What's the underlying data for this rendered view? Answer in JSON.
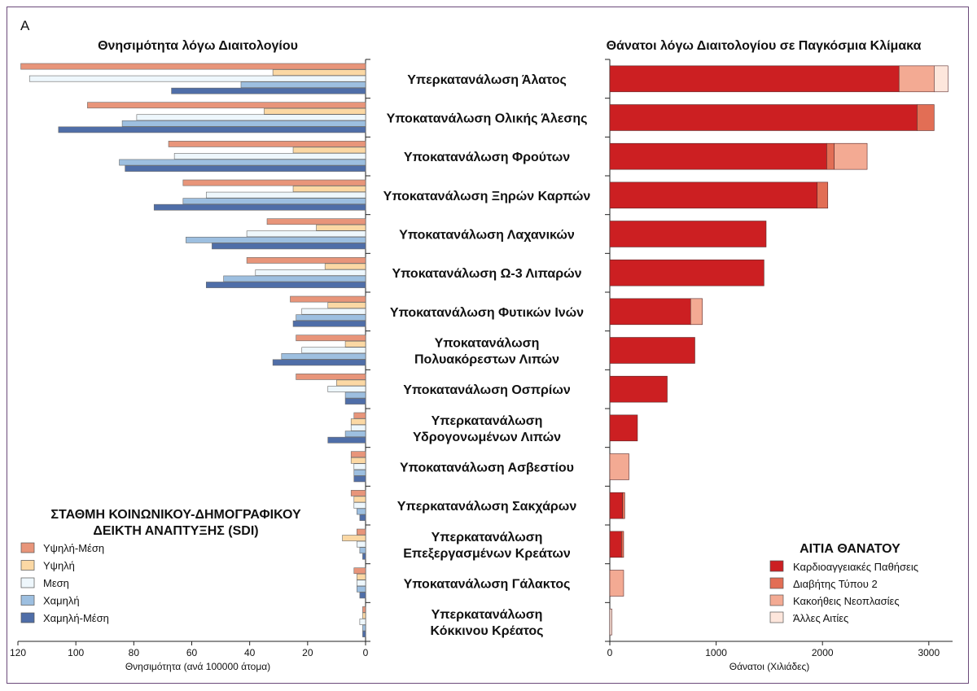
{
  "panel_letter": "A",
  "chart_data": [
    {
      "type": "bar",
      "title": "Θνησιμότητα λόγω Διαιτολογίου",
      "xlabel": "Θνησιμότητα (ανά 100000 άτομα)",
      "xlim": [
        0,
        120
      ],
      "x_reversed": true,
      "ticks": [
        0,
        20,
        40,
        60,
        80,
        100,
        120
      ],
      "categories": [
        "Υπερκατανάλωση Άλατος",
        "Υποκατανάλωση Ολικής Άλεσης",
        "Υποκατανάλωση Φρούτων",
        "Υποκατανάλωση Ξηρών Καρπών",
        "Υποκατανάλωση Λαχανικών",
        "Υποκατανάλωση Ω-3 Λιπαρών",
        "Υποκατανάλωση Φυτικών Ινών",
        "Υποκατανάλωση Πολυακόρεστων Λιπών",
        "Υποκατανάλωση Οσπρίων",
        "Υπερκατανάλωση Υδρογονωμένων Λιπών",
        "Υποκατανάλωση Ασβεστίου",
        "Υπερκατανάλωση Σακχάρων",
        "Υπερκατανάλωση Επεξεργασμένων Κρεάτων",
        "Υποκατανάλωση Γάλακτος",
        "Υπερκατανάλωση Κόκκινου Κρέατος"
      ],
      "legend_title": "ΣΤΑΘΜΗ ΚΟΙΝΩΝΙΚΟΥ-ΔΗΜΟΓΡΑΦΙΚΟΥ ΔΕΙΚΤΗ ΑΝΑΠΤΥΞΗΣ (SDI)",
      "legend_title_lines": [
        "ΣΤΑΘΜΗ ΚΟΙΝΩΝΙΚΟΥ-ΔΗΜΟΓΡΑΦΙΚΟΥ",
        "ΔΕΙΚΤΗ ΑΝΑΠΤΥΞΗΣ (SDI)"
      ],
      "legend_position": "bottom-left",
      "series": [
        {
          "name": "Υψηλή-Μέση",
          "color": "#e8957a",
          "values": [
            119,
            96,
            68,
            63,
            34,
            41,
            26,
            24,
            24,
            4,
            5,
            5,
            3,
            4,
            1
          ]
        },
        {
          "name": "Υψηλή",
          "color": "#fbd8a4",
          "values": [
            32,
            35,
            25,
            25,
            17,
            14,
            13,
            7,
            10,
            5,
            5,
            4,
            8,
            3,
            1
          ]
        },
        {
          "name": "Μεση",
          "color": "#eef7fc",
          "values": [
            116,
            79,
            66,
            55,
            41,
            38,
            22,
            22,
            13,
            5,
            4,
            4,
            3,
            3,
            2
          ]
        },
        {
          "name": "Χαμηλή",
          "color": "#9dbfe0",
          "values": [
            43,
            84,
            85,
            63,
            62,
            49,
            24,
            29,
            7,
            7,
            4,
            3,
            2,
            3,
            1
          ]
        },
        {
          "name": "Χαμηλή-Μέση",
          "color": "#4f6ea8",
          "values": [
            67,
            106,
            83,
            73,
            53,
            55,
            25,
            32,
            7,
            13,
            4,
            2,
            1,
            2,
            1
          ]
        }
      ]
    },
    {
      "type": "bar",
      "stacked": true,
      "title": "Θάνατοι λόγω Διαιτολογίου σε Παγκόσμια Κλίμακα",
      "xlabel": "Θάνατοι (Χιλιάδες)",
      "xlim": [
        0,
        3300
      ],
      "ticks": [
        0,
        1000,
        2000,
        3000
      ],
      "legend_title": "ΑΙΤΙΑ ΘΑΝΑΤΟΥ",
      "legend_position": "bottom-right",
      "series": [
        {
          "name": "Καρδιοαγγειακές Παθήσεις",
          "color": "#cc1f22",
          "values": [
            2720,
            2890,
            2040,
            1950,
            1470,
            1450,
            760,
            800,
            540,
            260,
            0,
            120,
            110,
            0,
            0
          ]
        },
        {
          "name": "Διαβήτης Τύπου 2",
          "color": "#e26e55",
          "values": [
            0,
            160,
            70,
            100,
            0,
            0,
            0,
            0,
            0,
            0,
            0,
            20,
            20,
            0,
            0
          ]
        },
        {
          "name": "Κακοήθεις Νεοπλασίες",
          "color": "#f3aa93",
          "values": [
            330,
            0,
            310,
            0,
            0,
            0,
            110,
            0,
            0,
            0,
            180,
            0,
            0,
            130,
            0
          ]
        },
        {
          "name": "Άλλες Αιτίες",
          "color": "#fde6dc",
          "values": [
            130,
            0,
            0,
            0,
            0,
            0,
            0,
            0,
            0,
            0,
            0,
            0,
            0,
            0,
            20
          ]
        }
      ]
    }
  ]
}
